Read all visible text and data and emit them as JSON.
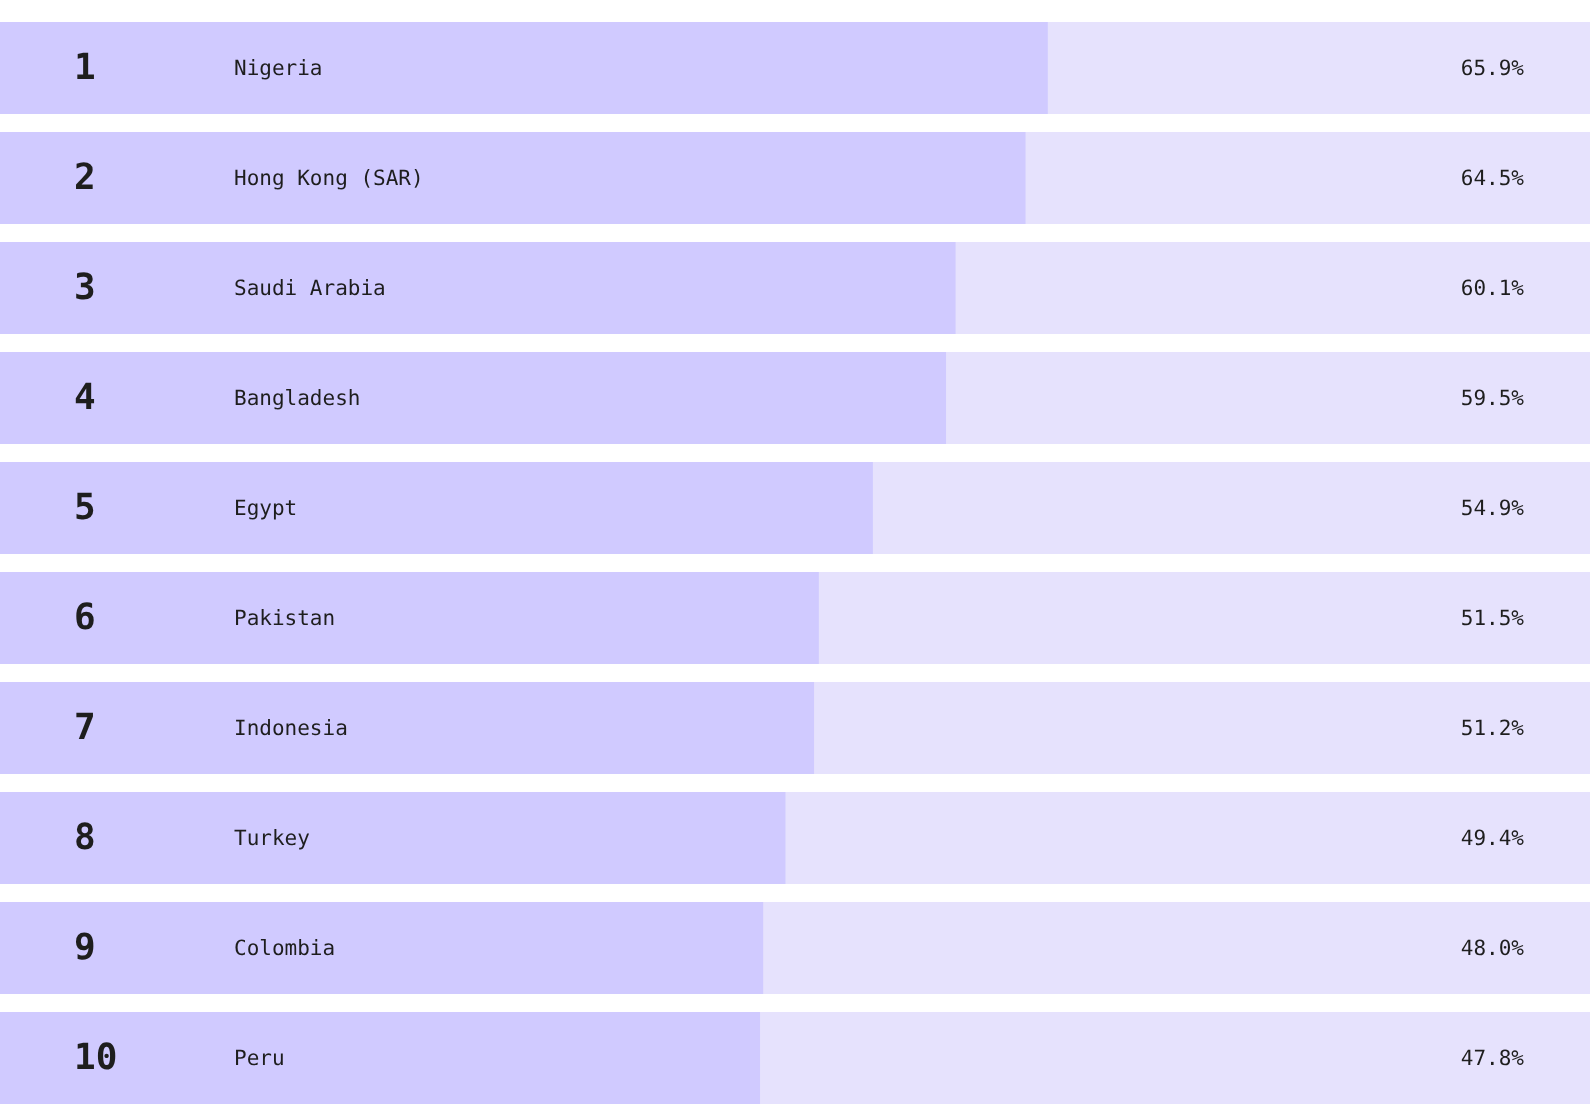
{
  "chart_data": {
    "type": "bar",
    "orientation": "horizontal",
    "categories": [
      "Nigeria",
      "Hong Kong (SAR)",
      "Saudi Arabia",
      "Bangladesh",
      "Egypt",
      "Pakistan",
      "Indonesia",
      "Turkey",
      "Colombia",
      "Peru"
    ],
    "values": [
      65.9,
      64.5,
      60.1,
      59.5,
      54.9,
      51.5,
      51.2,
      49.4,
      48.0,
      47.8
    ],
    "value_labels": [
      "65.9%",
      "64.5%",
      "60.1%",
      "59.5%",
      "54.9%",
      "51.5%",
      "51.2%",
      "49.4%",
      "48.0%",
      "47.8%"
    ],
    "color": "#d0caff",
    "xlim": [
      0,
      100
    ],
    "tick_labels": "y",
    "annotations": [
      "1",
      "2",
      "3",
      "4",
      "5",
      "6",
      "7",
      "8",
      "9",
      "10"
    ]
  }
}
